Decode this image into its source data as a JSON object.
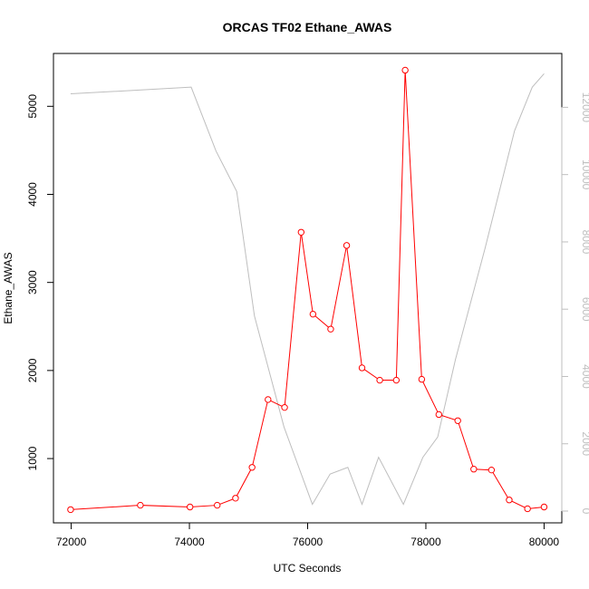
{
  "chart_data": {
    "type": "line",
    "title": "ORCAS TF02 Ethane_AWAS",
    "xlabel": "UTC Seconds",
    "ylabel": "Ethane_AWAS",
    "y2label": "",
    "xlim": [
      71700,
      80300
    ],
    "ylim": [
      270,
      5600
    ],
    "y2lim": [
      -350,
      13600
    ],
    "x_ticks": [
      72000,
      74000,
      76000,
      78000,
      80000
    ],
    "y_ticks": [
      1000,
      2000,
      3000,
      4000,
      5000
    ],
    "y2_ticks": [
      0,
      2000,
      4000,
      6000,
      8000,
      10000,
      12000
    ],
    "grid": false,
    "colors": {
      "ethane": "#ff0000",
      "altitude": "#bebebe",
      "axis": "#000000",
      "right_axis": "#bebebe"
    },
    "series": [
      {
        "axis": "left",
        "style": "line-with-open-circles",
        "x": [
          71990,
          73170,
          74010,
          74470,
          74780,
          75060,
          75330,
          75610,
          75890,
          76090,
          76390,
          76660,
          76920,
          77220,
          77500,
          77650,
          77930,
          78220,
          78540,
          78810,
          79110,
          79410,
          79720,
          80000
        ],
        "y": [
          420,
          470,
          450,
          470,
          550,
          900,
          1670,
          1580,
          3570,
          2640,
          2470,
          3420,
          2030,
          1890,
          1890,
          5410,
          1900,
          1500,
          1430,
          880,
          870,
          530,
          430,
          450
        ]
      },
      {
        "axis": "right",
        "style": "line",
        "x": [
          71990,
          74030,
          74450,
          74800,
          75100,
          75600,
          76080,
          76380,
          76680,
          76920,
          77200,
          77620,
          77950,
          78200,
          78500,
          79000,
          79500,
          79800,
          80000
        ],
        "y": [
          12400,
          12600,
          10700,
          9500,
          5800,
          2500,
          200,
          1100,
          1300,
          200,
          1600,
          200,
          1600,
          2200,
          4500,
          7800,
          11300,
          12600,
          13000
        ]
      }
    ]
  }
}
